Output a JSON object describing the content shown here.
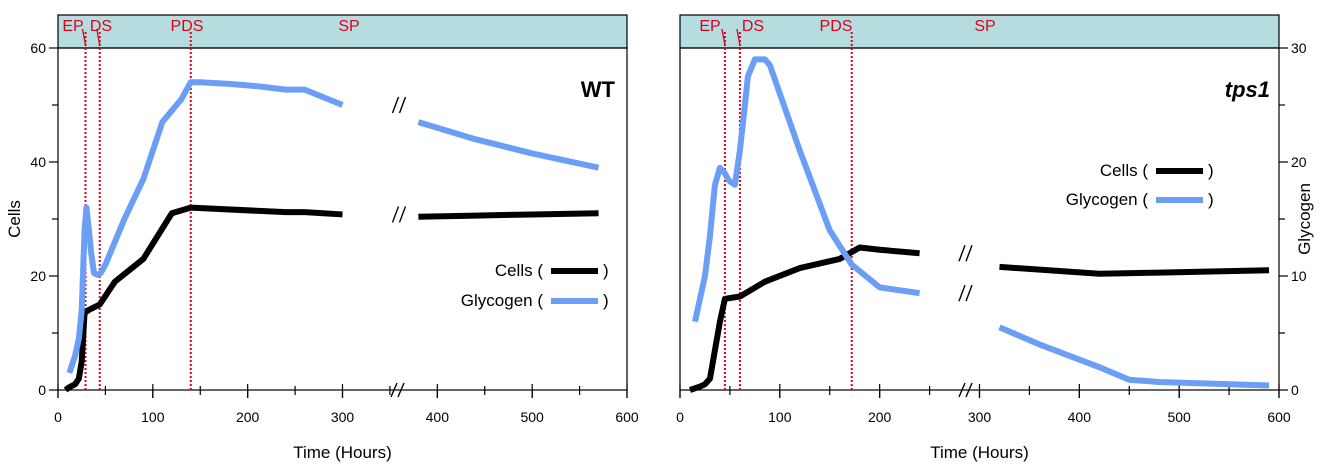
{
  "colors": {
    "cells": "#000000",
    "glycogen": "#6b9ef5",
    "phase_band": "#b5dde0",
    "phase_line": "#e0001b",
    "axis": "#000000"
  },
  "chart_data": [
    {
      "type": "line",
      "panel_label": "WT",
      "ylabel": "Cells",
      "xlabel": "Time (Hours)",
      "x_ticks": [
        "0",
        "100",
        "200",
        "300",
        "400",
        "500",
        "600"
      ],
      "y_ticks": [
        "0",
        "20",
        "40",
        "60"
      ],
      "ylim": [
        0,
        60
      ],
      "xlim": [
        0,
        600
      ],
      "x_axis_break": "//",
      "phases": [
        {
          "label": "EP",
          "x": 15
        },
        {
          "label": "DS",
          "x": 29
        },
        {
          "label": "PDS",
          "x": 75
        },
        {
          "label": "SP",
          "x": 200
        }
      ],
      "phase_boundaries": [
        29,
        44,
        140
      ],
      "legend": {
        "cells": "Cells (",
        "glycogen": "Glycogen (",
        "close": ")",
        "position": "center-right"
      },
      "series": [
        {
          "name": "Cells",
          "key": "cells",
          "x": [
            8,
            12,
            18,
            22,
            25,
            28,
            32,
            44,
            60,
            90,
            120,
            140,
            240,
            260,
            300,
            380,
            440,
            500,
            570
          ],
          "y": [
            0,
            0.5,
            1,
            2,
            5,
            13.5,
            14,
            15,
            19,
            23,
            31,
            32,
            31.2,
            31.2,
            30.8,
            30.4,
            30.6,
            30.8,
            31
          ]
        },
        {
          "name": "Glycogen",
          "key": "glycogen",
          "x": [
            12,
            18,
            22,
            25,
            28,
            30,
            32,
            35,
            38,
            42,
            45,
            50,
            60,
            70,
            90,
            110,
            130,
            140,
            150,
            180,
            210,
            240,
            260,
            300,
            380,
            440,
            500,
            570
          ],
          "y": [
            3,
            6,
            9,
            14,
            28,
            32,
            29,
            24,
            20.5,
            20.2,
            20.5,
            22,
            26,
            30,
            37,
            47,
            51,
            54,
            54,
            53.7,
            53.3,
            52.7,
            52.7,
            50,
            47,
            44,
            41.5,
            39
          ]
        }
      ]
    },
    {
      "type": "line",
      "panel_label": "tps1",
      "ylabel": "Glycogen",
      "xlabel": "Time (Hours)",
      "x_ticks": [
        "0",
        "100",
        "200",
        "300",
        "400",
        "500",
        "600"
      ],
      "y_ticks": [
        "0",
        "10",
        "20",
        "30"
      ],
      "ylim": [
        0,
        30
      ],
      "xlim": [
        0,
        600
      ],
      "x_axis_break": "//",
      "phases": [
        {
          "label": "EP",
          "x": 18
        },
        {
          "label": "DS",
          "x": 37
        },
        {
          "label": "PDS",
          "x": 110
        },
        {
          "label": "SP",
          "x": 185
        }
      ],
      "phase_boundaries": [
        45,
        60,
        172
      ],
      "legend": {
        "cells": "Cells (",
        "glycogen": "Glycogen (",
        "close": ")",
        "position": "center-right"
      },
      "series": [
        {
          "name": "Cells",
          "key": "cells",
          "x": [
            10,
            20,
            25,
            30,
            35,
            40,
            45,
            60,
            85,
            120,
            160,
            180,
            200,
            240,
            280,
            320,
            420,
            480,
            590
          ],
          "y": [
            0,
            0.3,
            0.5,
            1,
            3.5,
            6,
            8,
            8.2,
            9.5,
            10.7,
            11.5,
            12.5,
            12.3,
            12,
            11.4,
            10.8,
            10.2,
            10.3,
            10.5
          ]
        },
        {
          "name": "Glycogen",
          "key": "glycogen",
          "x": [
            15,
            20,
            25,
            30,
            35,
            40,
            45,
            48,
            50,
            55,
            60,
            65,
            68,
            75,
            80,
            85,
            90,
            100,
            120,
            150,
            172,
            200,
            240,
            280,
            320,
            360,
            420,
            450,
            480,
            590
          ],
          "y": [
            6,
            8,
            10,
            13.5,
            18,
            19.5,
            19,
            18.5,
            18.3,
            18,
            21,
            25,
            27.5,
            29,
            29,
            29,
            28.5,
            26,
            21,
            14,
            11,
            9,
            8.5,
            7,
            5.5,
            4,
            2,
            0.9,
            0.7,
            0.4
          ]
        }
      ]
    }
  ]
}
